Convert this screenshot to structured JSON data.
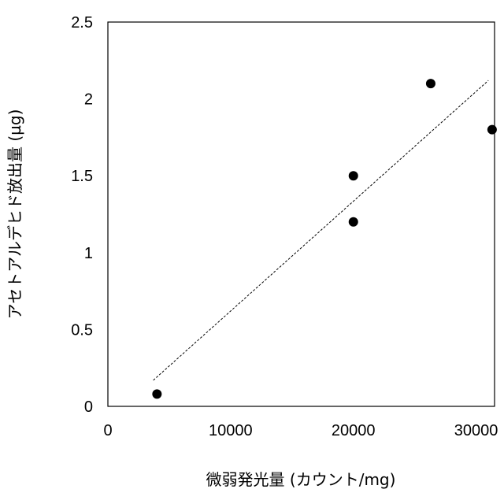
{
  "chart_data": {
    "type": "scatter",
    "title": "",
    "xlabel": "微弱発光量 (カウント/mg)",
    "ylabel": "アセトアルデヒド放出量 (µg)",
    "xlim": [
      0,
      31500
    ],
    "ylim": [
      0,
      2.5
    ],
    "x_ticks": [
      0,
      10000,
      20000,
      30000
    ],
    "y_ticks": [
      0,
      0.5,
      1,
      1.5,
      2,
      2.5
    ],
    "x_tick_labels": [
      "0",
      "10000",
      "20000",
      "30000"
    ],
    "y_tick_labels": [
      "0",
      "0.5",
      "1",
      "1.5",
      "2",
      "2.5"
    ],
    "grid": false,
    "series": [
      {
        "x": [
          4000,
          20000,
          20000,
          26300,
          31300
        ],
        "y": [
          0.08,
          1.5,
          1.2,
          2.1,
          1.8
        ],
        "marker_color": "#000000"
      }
    ],
    "trendline": {
      "style": "dashed",
      "x": [
        3700,
        31000
      ],
      "y": [
        0.17,
        2.12
      ]
    }
  }
}
